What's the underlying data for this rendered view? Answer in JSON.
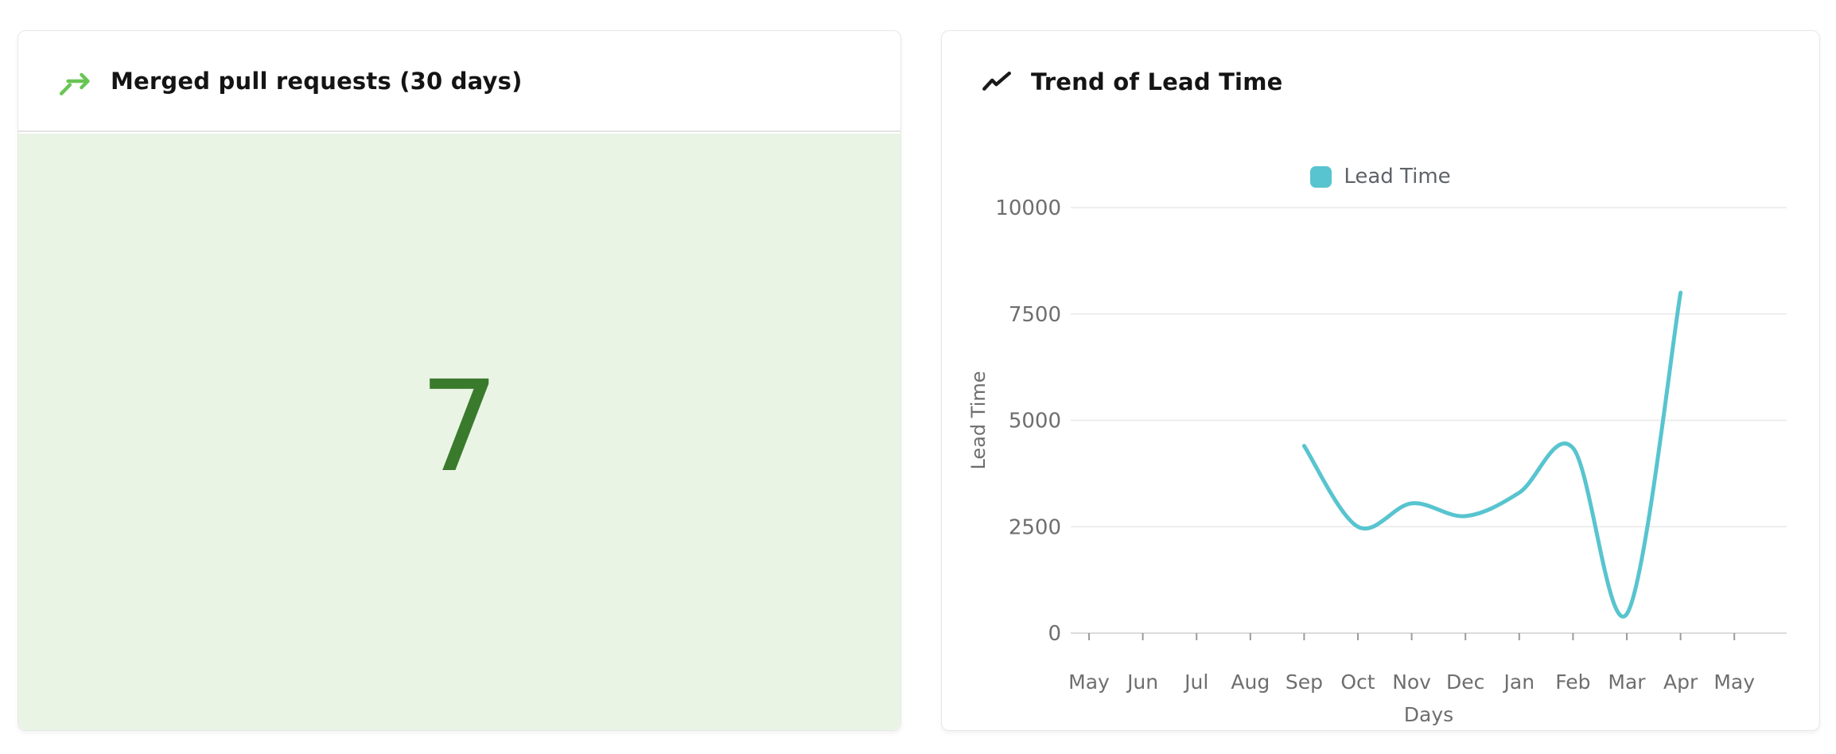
{
  "colors": {
    "accent_green": "#68c554",
    "stat_value_green": "#3a7a2d",
    "stat_bg_green": "#eaf4e5",
    "series_teal": "#58c4cf",
    "header_divider": "#e4e4e6",
    "axis_text": "#6e6e6e",
    "grid_line": "#e8e8e8",
    "axis_line": "#dcdcdc",
    "tick_mark": "#9b9b9b"
  },
  "cards": {
    "merged_pr": {
      "title": "Merged pull requests (30 days)",
      "value": "7",
      "icon": "git-merge-arrow-icon"
    },
    "lead_time": {
      "title": "Trend of Lead Time",
      "icon": "trending-up-icon"
    }
  },
  "chart_data": {
    "type": "line",
    "title": "Trend of Lead Time",
    "categories": [
      "May",
      "Jun",
      "Jul",
      "Aug",
      "Sep",
      "Oct",
      "Nov",
      "Dec",
      "Jan",
      "Feb",
      "Mar",
      "Apr",
      "May"
    ],
    "series": [
      {
        "name": "Lead Time",
        "color": "#58c4cf",
        "values": [
          null,
          null,
          null,
          null,
          4400,
          2500,
          3050,
          2750,
          3300,
          4350,
          450,
          8000,
          null
        ]
      }
    ],
    "xlabel": "Days",
    "ylabel": "Lead Time",
    "ylim": [
      0,
      10000
    ],
    "yticks": [
      0,
      2500,
      5000,
      7500,
      10000
    ],
    "legend_position": "top",
    "grid": "horizontal",
    "smooth": true
  }
}
